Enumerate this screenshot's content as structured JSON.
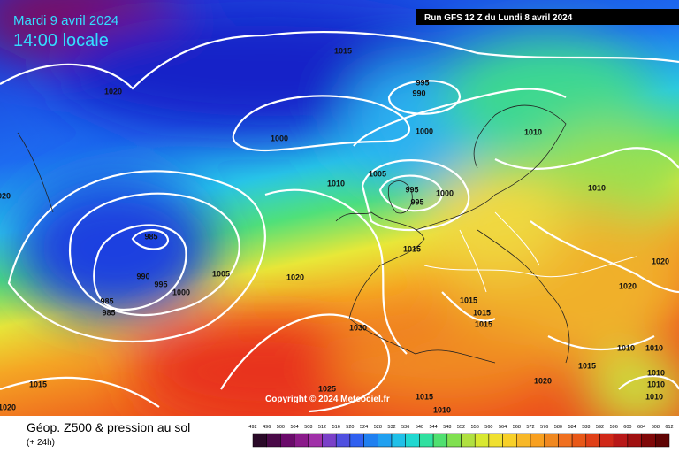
{
  "header": {
    "date": "Mardi 9 avril 2024",
    "time": "14:00 locale",
    "run": "Run GFS 12 Z du Lundi 8 avril 2024"
  },
  "copyright": "Copyright © 2024 Meteociel.fr",
  "legend": {
    "title": "Géop. Z500 & pression au sol",
    "subtitle": "(+ 24h)",
    "scale": [
      "492",
      "496",
      "500",
      "504",
      "508",
      "512",
      "516",
      "520",
      "524",
      "528",
      "532",
      "536",
      "540",
      "544",
      "548",
      "552",
      "556",
      "560",
      "564",
      "568",
      "572",
      "576",
      "580",
      "584",
      "588",
      "592",
      "596",
      "600",
      "604",
      "608",
      "612"
    ]
  },
  "isobar_labels": [
    "1020",
    "1015",
    "995",
    "990",
    "1000",
    "1000",
    "1010",
    "1005",
    "1010",
    "995",
    "1000",
    "995",
    "1010",
    "985",
    "1015",
    "990",
    "995",
    "1000",
    "1005",
    "1020",
    "985",
    "985",
    "1020",
    "1020",
    "1015",
    "1015",
    "1015",
    "1030",
    "1010",
    "1010",
    "1015",
    "1015",
    "1020",
    "1010",
    "1010",
    "1010",
    "1025",
    "1015",
    "1010",
    "1020",
    "1020"
  ]
}
